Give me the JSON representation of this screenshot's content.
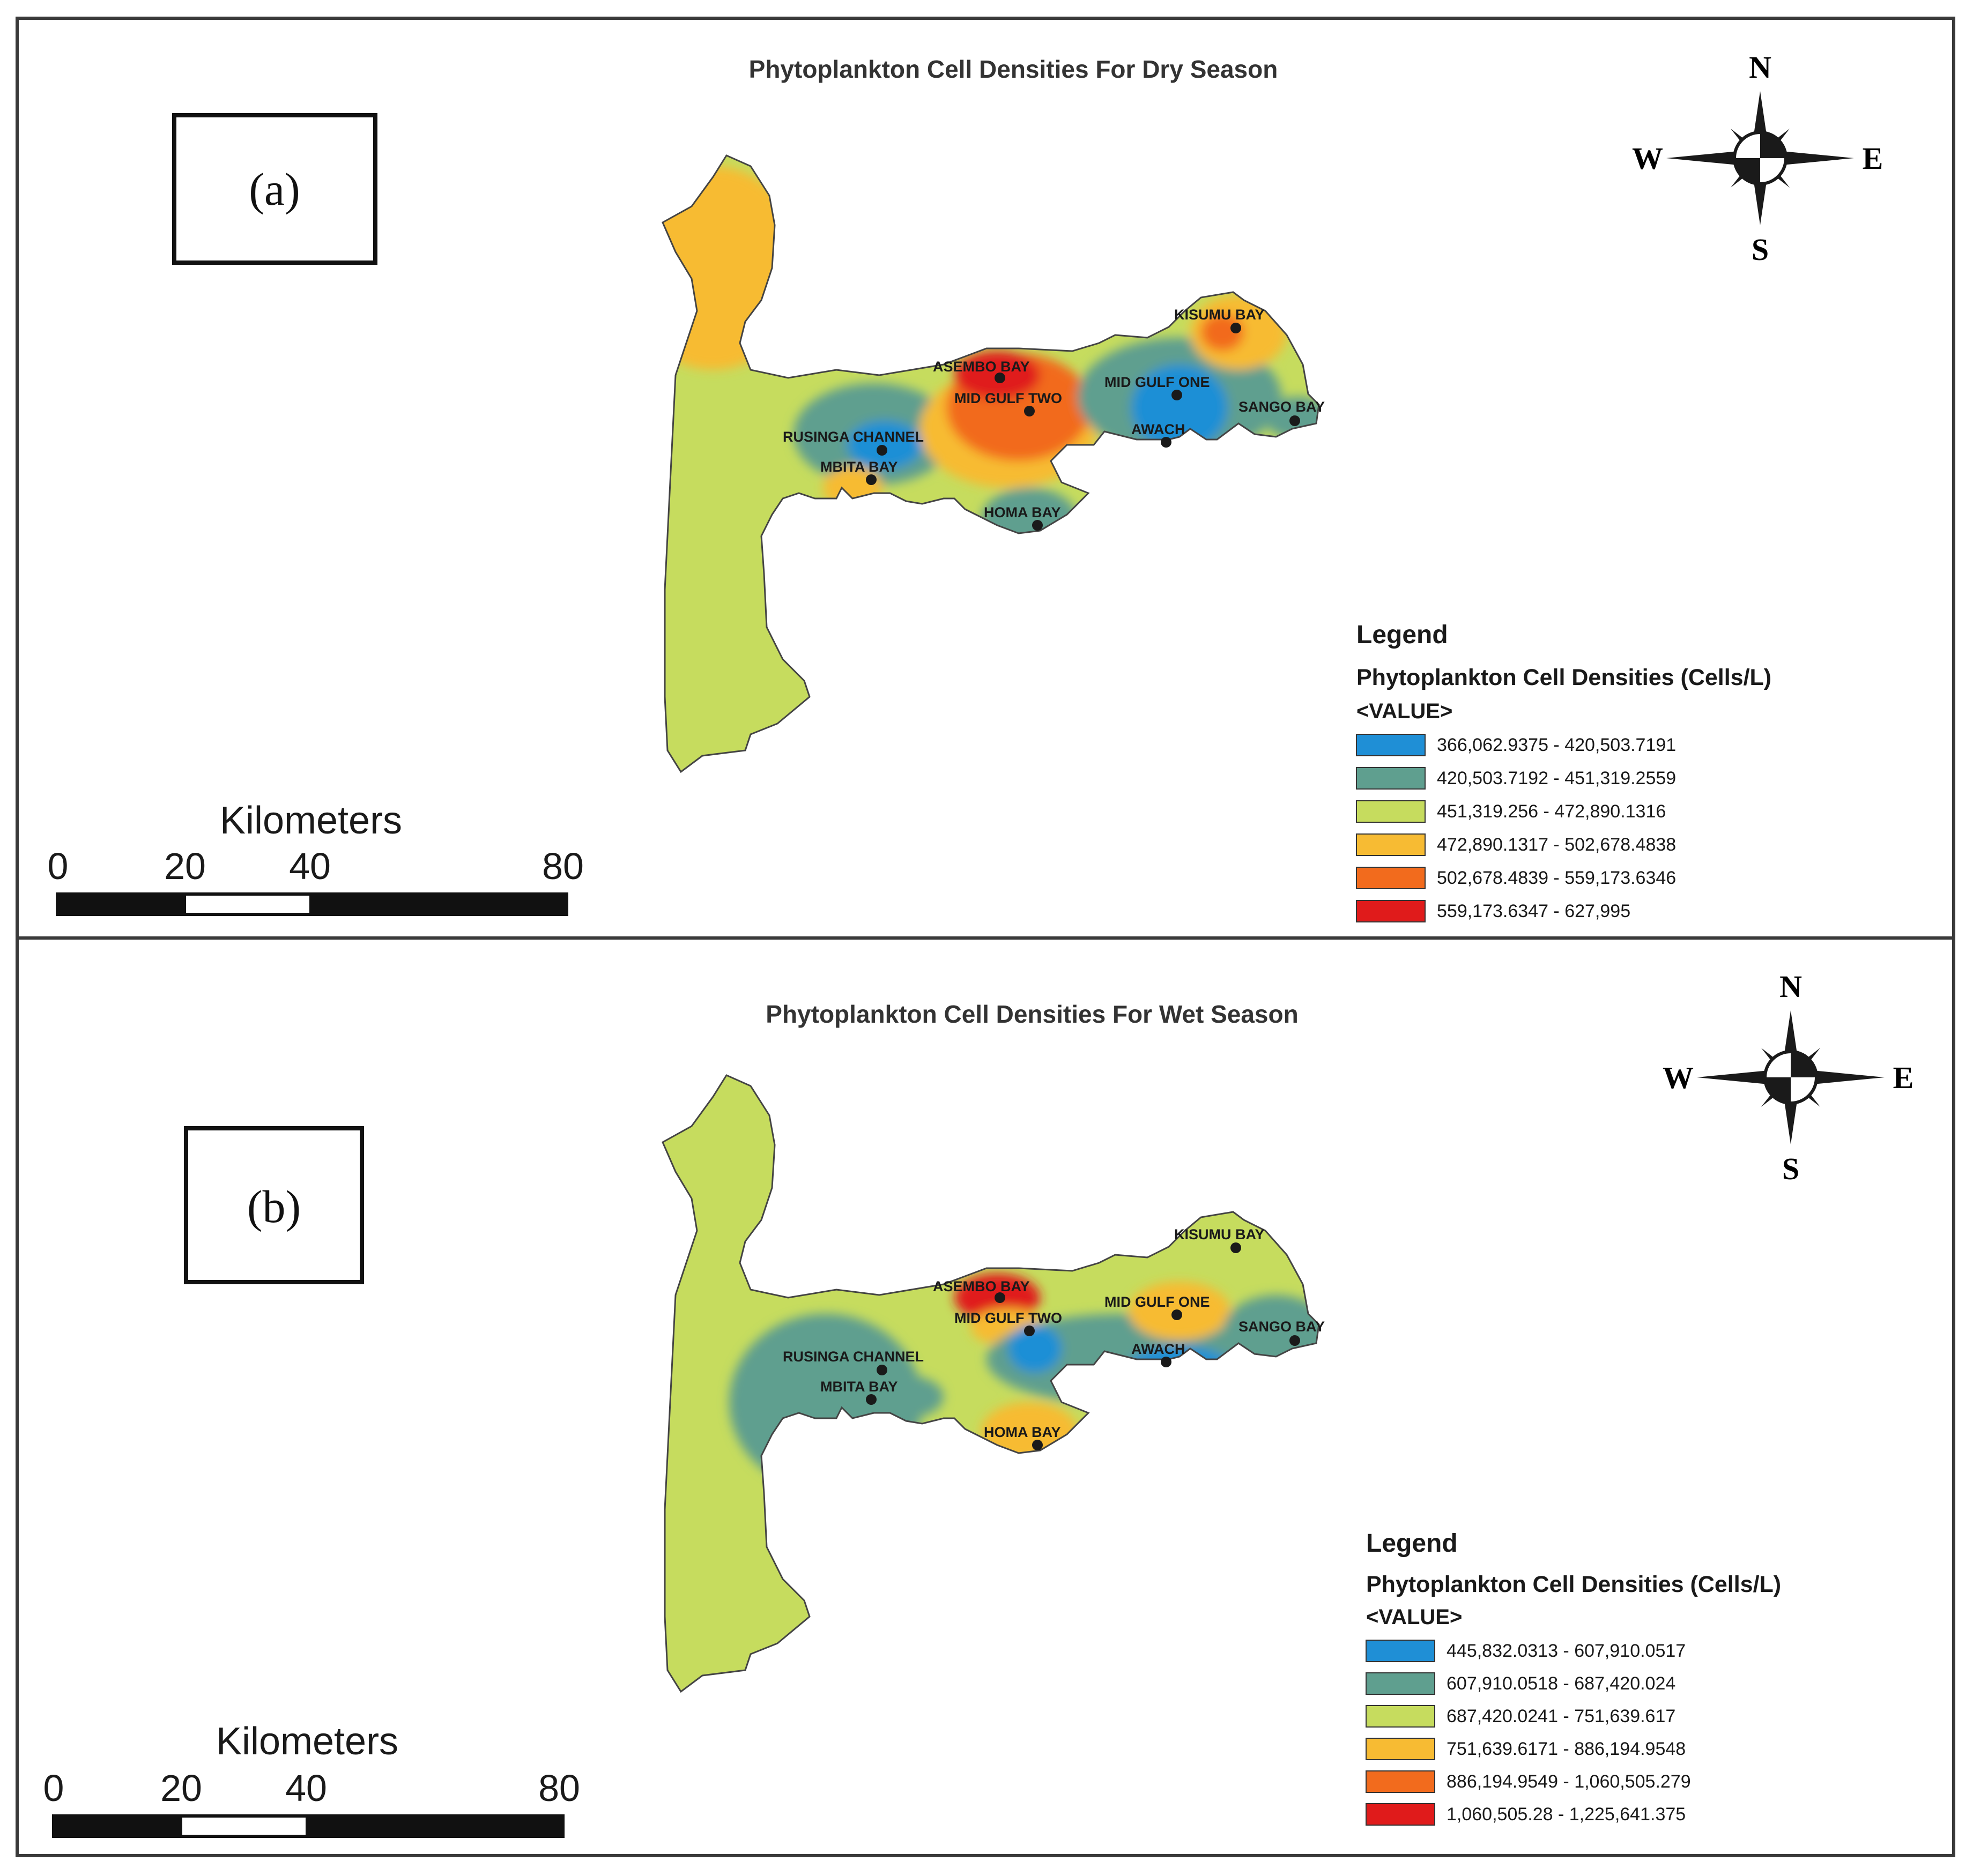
{
  "colors": {
    "blue": "#1f8fd6",
    "teal": "#5f9f8f",
    "yellowgreen": "#c6dc5e",
    "orange_yellow": "#f7bb33",
    "orange": "#f26b1d",
    "red": "#e01b1b",
    "frame": "#3a3a3a",
    "station": "#1a1a1a"
  },
  "panels": [
    {
      "panel_label": "(a)",
      "title": "Phytoplankton Cell Densities For Dry Season",
      "north_arrow": {
        "n": "N",
        "e": "E",
        "s": "S",
        "w": "W"
      },
      "scale_bar": {
        "unit_label": "Kilometers",
        "ticks": [
          "0",
          "20",
          "40",
          "80"
        ]
      },
      "legend": {
        "title": "Legend",
        "field": "Phytoplankton Cell Densities (Cells/L)",
        "value_label": "<VALUE>",
        "classes": [
          {
            "label": "366,062.9375 - 420,503.7191",
            "color": "#1f8fd6"
          },
          {
            "label": "420,503.7192 - 451,319.2559",
            "color": "#5f9f8f"
          },
          {
            "label": "451,319.256 - 472,890.1316",
            "color": "#c6dc5e"
          },
          {
            "label": "472,890.1317 - 502,678.4838",
            "color": "#f7bb33"
          },
          {
            "label": "502,678.4839 - 559,173.6346",
            "color": "#f26b1d"
          },
          {
            "label": "559,173.6347 - 627,995",
            "color": "#e01b1b"
          }
        ]
      },
      "stations": [
        {
          "name": "KISUMU BAY"
        },
        {
          "name": "ASEMBO BAY"
        },
        {
          "name": "MID GULF ONE"
        },
        {
          "name": "MID GULF TWO"
        },
        {
          "name": "SANGO BAY"
        },
        {
          "name": "RUSINGA CHANNEL"
        },
        {
          "name": "AWACH"
        },
        {
          "name": "MBITA BAY"
        },
        {
          "name": "HOMA BAY"
        }
      ]
    },
    {
      "panel_label": "(b)",
      "title": "Phytoplankton Cell Densities For Wet Season",
      "north_arrow": {
        "n": "N",
        "e": "E",
        "s": "S",
        "w": "W"
      },
      "scale_bar": {
        "unit_label": "Kilometers",
        "ticks": [
          "0",
          "20",
          "40",
          "80"
        ]
      },
      "legend": {
        "title": "Legend",
        "field": "Phytoplankton Cell Densities (Cells/L)",
        "value_label": "<VALUE>",
        "classes": [
          {
            "label": "445,832.0313 - 607,910.0517",
            "color": "#1f8fd6"
          },
          {
            "label": "607,910.0518 - 687,420.024",
            "color": "#5f9f8f"
          },
          {
            "label": "687,420.0241 - 751,639.617",
            "color": "#c6dc5e"
          },
          {
            "label": "751,639.6171 - 886,194.9548",
            "color": "#f7bb33"
          },
          {
            "label": "886,194.9549 - 1,060,505.279",
            "color": "#f26b1d"
          },
          {
            "label": "1,060,505.28 - 1,225,641.375",
            "color": "#e01b1b"
          }
        ]
      },
      "stations": [
        {
          "name": "KISUMU BAY"
        },
        {
          "name": "ASEMBO BAY"
        },
        {
          "name": "MID GULF ONE"
        },
        {
          "name": "MID GULF TWO"
        },
        {
          "name": "SANGO BAY"
        },
        {
          "name": "RUSINGA CHANNEL"
        },
        {
          "name": "AWACH"
        },
        {
          "name": "MBITA BAY"
        },
        {
          "name": "HOMA BAY"
        }
      ]
    }
  ]
}
